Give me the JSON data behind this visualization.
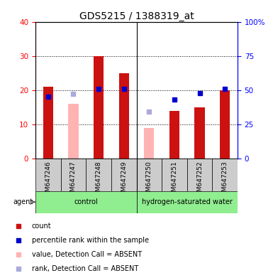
{
  "title": "GDS5215 / 1388319_at",
  "samples": [
    "GSM647246",
    "GSM647247",
    "GSM647248",
    "GSM647249",
    "GSM647250",
    "GSM647251",
    "GSM647252",
    "GSM647253"
  ],
  "red_bars": [
    21,
    null,
    30,
    25,
    null,
    14,
    15,
    20
  ],
  "pink_bars": [
    null,
    16,
    null,
    null,
    9,
    null,
    null,
    null
  ],
  "blue_squares": [
    45,
    null,
    51,
    51,
    null,
    43,
    48,
    51
  ],
  "lavender_squares": [
    null,
    47,
    null,
    null,
    34,
    null,
    null,
    null
  ],
  "ylim_left": [
    0,
    40
  ],
  "ylim_right": [
    0,
    100
  ],
  "yticks_left": [
    0,
    10,
    20,
    30,
    40
  ],
  "yticks_right": [
    0,
    25,
    50,
    75,
    100
  ],
  "ytick_labels_right": [
    "0",
    "25",
    "50",
    "75",
    "100%"
  ],
  "red_color": "#CC1111",
  "pink_color": "#FFB3B3",
  "blue_color": "#0000CC",
  "lavender_color": "#AAAADD",
  "group_colors_light": "#90EE90",
  "group_colors_dark": "#44CC44",
  "group_defs": [
    {
      "start": 0,
      "end": 3,
      "label": "control"
    },
    {
      "start": 4,
      "end": 7,
      "label": "hydrogen-saturated water"
    }
  ],
  "bar_width": 0.4,
  "title_fontsize": 10,
  "tick_fontsize": 7.5,
  "legend_fontsize": 7,
  "sample_fontsize": 6.5
}
